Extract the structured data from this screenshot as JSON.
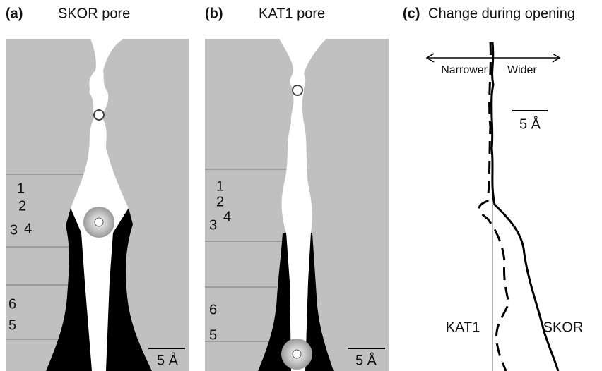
{
  "panels": [
    {
      "label": "(a)",
      "title": "SKOR pore",
      "layers": [
        "1",
        "2",
        "3",
        "4",
        "6",
        "5"
      ],
      "scale": "5 Å"
    },
    {
      "label": "(b)",
      "title": "KAT1 pore",
      "layers": [
        "1",
        "2",
        "3",
        "4",
        "6",
        "5"
      ],
      "scale": "5 Å"
    },
    {
      "label": "(c)",
      "title": "Change during opening",
      "narrower": "Narrower",
      "wider": "Wider",
      "scale": "5 Å",
      "curves": [
        "KAT1",
        "SKOR"
      ]
    }
  ]
}
